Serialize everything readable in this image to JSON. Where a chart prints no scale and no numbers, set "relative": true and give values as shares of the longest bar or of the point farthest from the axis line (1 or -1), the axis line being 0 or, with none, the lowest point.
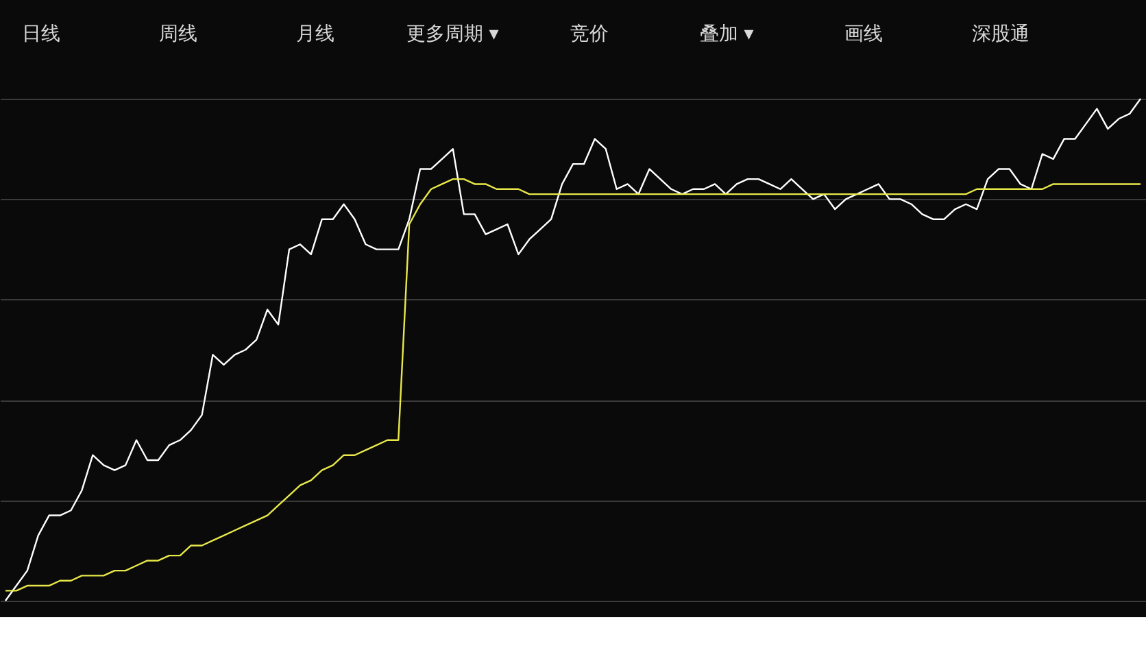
{
  "chart_data": {
    "type": "line",
    "relative": true,
    "grid": "y",
    "marker": "none",
    "line_style": "solid",
    "annotations": [
      "日线",
      "周线",
      "月线",
      "更多周期 ▾",
      "竞价",
      "叠加 ▾",
      "画线",
      "深股通"
    ],
    "categories": [
      null,
      null,
      null,
      null,
      null,
      null,
      null,
      null,
      null,
      null,
      null,
      null,
      null,
      null,
      null,
      null,
      null,
      null,
      null,
      null,
      null,
      null,
      null,
      null,
      null,
      null,
      null,
      null,
      null,
      null,
      null,
      null,
      null,
      null,
      null,
      null,
      null,
      null,
      null,
      null,
      null,
      null,
      null,
      null,
      null,
      null,
      null,
      null,
      null,
      null,
      null,
      null,
      null,
      null,
      null,
      null,
      null,
      null,
      null,
      null,
      null,
      null,
      null,
      null,
      null,
      null,
      null,
      null,
      null,
      null,
      null,
      null,
      null,
      null,
      null,
      null,
      null,
      null,
      null,
      null,
      null,
      null,
      null,
      null,
      null,
      null,
      null,
      null,
      null,
      null,
      null,
      null,
      null,
      null,
      null,
      null,
      null,
      null,
      null,
      null,
      null,
      null,
      null,
      null,
      null
    ],
    "series": [
      {
        "color": "#ffffff",
        "values": [
          0,
          0.03,
          0.06,
          0.13,
          0.17,
          0.17,
          0.18,
          0.22,
          0.29,
          0.27,
          0.26,
          0.27,
          0.32,
          0.28,
          0.28,
          0.31,
          0.32,
          0.34,
          0.37,
          0.49,
          0.47,
          0.49,
          0.5,
          0.52,
          0.58,
          0.55,
          0.7,
          0.71,
          0.69,
          0.76,
          0.76,
          0.79,
          0.76,
          0.71,
          0.7,
          0.7,
          0.7,
          0.76,
          0.86,
          0.86,
          0.88,
          0.9,
          0.77,
          0.77,
          0.73,
          0.74,
          0.75,
          0.69,
          0.72,
          0.74,
          0.76,
          0.83,
          0.87,
          0.87,
          0.92,
          0.9,
          0.82,
          0.83,
          0.81,
          0.86,
          0.84,
          0.82,
          0.81,
          0.82,
          0.82,
          0.83,
          0.81,
          0.83,
          0.84,
          0.84,
          0.83,
          0.82,
          0.84,
          0.82,
          0.8,
          0.81,
          0.78,
          0.8,
          0.81,
          0.82,
          0.83,
          0.8,
          0.8,
          0.79,
          0.77,
          0.76,
          0.76,
          0.78,
          0.79,
          0.78,
          0.84,
          0.86,
          0.86,
          0.83,
          0.82,
          0.89,
          0.88,
          0.92,
          0.92,
          0.95,
          0.98,
          0.94,
          0.96,
          0.97,
          1.0
        ]
      },
      {
        "color": "#e8e84a",
        "values": [
          0.02,
          0.02,
          0.03,
          0.03,
          0.03,
          0.04,
          0.04,
          0.05,
          0.05,
          0.05,
          0.06,
          0.06,
          0.07,
          0.08,
          0.08,
          0.09,
          0.09,
          0.11,
          0.11,
          0.12,
          0.13,
          0.14,
          0.15,
          0.16,
          0.17,
          0.19,
          0.21,
          0.23,
          0.24,
          0.26,
          0.27,
          0.29,
          0.29,
          0.3,
          0.31,
          0.32,
          0.32,
          0.75,
          0.79,
          0.82,
          0.83,
          0.84,
          0.84,
          0.83,
          0.83,
          0.82,
          0.82,
          0.82,
          0.81,
          0.81,
          0.81,
          0.81,
          0.81,
          0.81,
          0.81,
          0.81,
          0.81,
          0.81,
          0.81,
          0.81,
          0.81,
          0.81,
          0.81,
          0.81,
          0.81,
          0.81,
          0.81,
          0.81,
          0.81,
          0.81,
          0.81,
          0.81,
          0.81,
          0.81,
          0.81,
          0.81,
          0.81,
          0.81,
          0.81,
          0.81,
          0.81,
          0.81,
          0.81,
          0.81,
          0.81,
          0.81,
          0.81,
          0.81,
          0.81,
          0.82,
          0.82,
          0.82,
          0.82,
          0.82,
          0.82,
          0.82,
          0.83,
          0.83,
          0.83,
          0.83,
          0.83,
          0.83,
          0.83,
          0.83,
          0.83
        ]
      }
    ]
  }
}
